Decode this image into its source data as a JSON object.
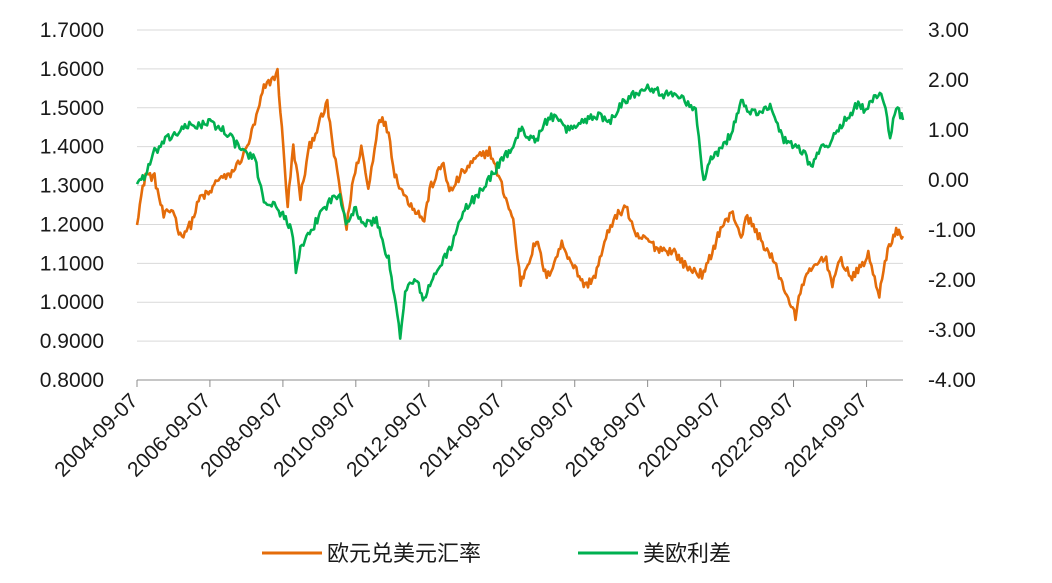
{
  "chart_data": {
    "type": "line",
    "title": "",
    "xlabel": "",
    "ylabel_left": "",
    "ylabel_right": "",
    "grid": "horizontal",
    "legend_position": "bottom",
    "x_range": [
      "2004-09-07",
      "2025-09-07"
    ],
    "x_tick_labels": [
      "2004-09-07",
      "2006-09-07",
      "2008-09-07",
      "2010-09-07",
      "2012-09-07",
      "2014-09-07",
      "2016-09-07",
      "2018-09-07",
      "2020-09-07",
      "2022-09-07",
      "2024-09-07"
    ],
    "y_left": {
      "min": 0.8,
      "max": 1.7,
      "step": 0.1,
      "tick_labels": [
        "0.8000",
        "0.9000",
        "1.0000",
        "1.1000",
        "1.2000",
        "1.3000",
        "1.4000",
        "1.5000",
        "1.6000",
        "1.7000"
      ]
    },
    "y_right": {
      "min": -4.0,
      "max": 3.0,
      "step": 1.0,
      "tick_labels": [
        "-4.00",
        "-3.00",
        "-2.00",
        "-1.00",
        "0.00",
        "1.00",
        "2.00",
        "3.00"
      ]
    },
    "series": [
      {
        "name": "欧元兑美元汇率",
        "axis": "left",
        "color": "#E46C0A",
        "points": [
          [
            "2004-09-07",
            1.21
          ],
          [
            "2004-12-01",
            1.33
          ],
          [
            "2005-03-01",
            1.32
          ],
          [
            "2005-06-01",
            1.22
          ],
          [
            "2005-09-01",
            1.24
          ],
          [
            "2005-11-15",
            1.17
          ],
          [
            "2006-03-01",
            1.2
          ],
          [
            "2006-06-01",
            1.27
          ],
          [
            "2006-09-07",
            1.28
          ],
          [
            "2006-12-01",
            1.32
          ],
          [
            "2007-03-01",
            1.32
          ],
          [
            "2007-06-01",
            1.35
          ],
          [
            "2007-09-01",
            1.39
          ],
          [
            "2007-12-01",
            1.46
          ],
          [
            "2008-03-01",
            1.55
          ],
          [
            "2008-07-15",
            1.59
          ],
          [
            "2008-10-25",
            1.25
          ],
          [
            "2008-12-20",
            1.4
          ],
          [
            "2009-03-01",
            1.27
          ],
          [
            "2009-06-01",
            1.4
          ],
          [
            "2009-11-25",
            1.51
          ],
          [
            "2010-02-01",
            1.38
          ],
          [
            "2010-06-07",
            1.19
          ],
          [
            "2010-08-01",
            1.3
          ],
          [
            "2010-11-01",
            1.4
          ],
          [
            "2011-01-10",
            1.29
          ],
          [
            "2011-05-01",
            1.48
          ],
          [
            "2011-08-01",
            1.44
          ],
          [
            "2011-10-01",
            1.33
          ],
          [
            "2012-01-15",
            1.27
          ],
          [
            "2012-07-24",
            1.21
          ],
          [
            "2012-09-15",
            1.29
          ],
          [
            "2013-02-01",
            1.36
          ],
          [
            "2013-04-01",
            1.28
          ],
          [
            "2013-08-01",
            1.33
          ],
          [
            "2014-01-01",
            1.37
          ],
          [
            "2014-05-08",
            1.39
          ],
          [
            "2014-09-07",
            1.3
          ],
          [
            "2014-12-31",
            1.21
          ],
          [
            "2015-03-15",
            1.05
          ],
          [
            "2015-08-20",
            1.16
          ],
          [
            "2015-12-01",
            1.06
          ],
          [
            "2016-05-01",
            1.15
          ],
          [
            "2016-12-20",
            1.04
          ],
          [
            "2017-04-01",
            1.07
          ],
          [
            "2017-09-01",
            1.2
          ],
          [
            "2018-02-01",
            1.25
          ],
          [
            "2018-05-01",
            1.17
          ],
          [
            "2018-09-07",
            1.16
          ],
          [
            "2018-12-01",
            1.14
          ],
          [
            "2019-06-01",
            1.13
          ],
          [
            "2019-09-30",
            1.09
          ],
          [
            "2020-03-20",
            1.07
          ],
          [
            "2020-06-01",
            1.12
          ],
          [
            "2020-09-07",
            1.19
          ],
          [
            "2021-01-06",
            1.23
          ],
          [
            "2021-03-31",
            1.17
          ],
          [
            "2021-06-01",
            1.22
          ],
          [
            "2021-09-01",
            1.18
          ],
          [
            "2022-03-01",
            1.1
          ],
          [
            "2022-07-01",
            1.02
          ],
          [
            "2022-09-27",
            0.96
          ],
          [
            "2022-12-01",
            1.05
          ],
          [
            "2023-04-01",
            1.09
          ],
          [
            "2023-07-15",
            1.12
          ],
          [
            "2023-10-01",
            1.05
          ],
          [
            "2023-12-28",
            1.11
          ],
          [
            "2024-04-15",
            1.06
          ],
          [
            "2024-09-25",
            1.12
          ],
          [
            "2025-01-13",
            1.02
          ],
          [
            "2025-04-21",
            1.15
          ],
          [
            "2025-07-01",
            1.18
          ],
          [
            "2025-09-07",
            1.17
          ]
        ]
      },
      {
        "name": "美欧利差",
        "axis": "right",
        "color": "#00B050",
        "points": [
          [
            "2004-09-07",
            -0.05
          ],
          [
            "2004-12-01",
            0.1
          ],
          [
            "2005-03-01",
            0.55
          ],
          [
            "2005-06-01",
            0.75
          ],
          [
            "2005-09-01",
            0.9
          ],
          [
            "2006-03-01",
            1.1
          ],
          [
            "2006-06-01",
            1.1
          ],
          [
            "2006-09-07",
            1.15
          ],
          [
            "2006-12-01",
            1.05
          ],
          [
            "2007-03-01",
            0.95
          ],
          [
            "2007-06-01",
            0.7
          ],
          [
            "2007-09-01",
            0.55
          ],
          [
            "2007-12-01",
            0.4
          ],
          [
            "2008-03-01",
            -0.4
          ],
          [
            "2008-06-01",
            -0.5
          ],
          [
            "2008-09-07",
            -0.7
          ],
          [
            "2008-12-01",
            -0.95
          ],
          [
            "2009-01-15",
            -1.8
          ],
          [
            "2009-03-01",
            -1.4
          ],
          [
            "2009-06-01",
            -1.1
          ],
          [
            "2009-10-01",
            -0.6
          ],
          [
            "2010-01-01",
            -0.4
          ],
          [
            "2010-04-01",
            -0.3
          ],
          [
            "2010-06-01",
            -0.8
          ],
          [
            "2010-09-07",
            -0.6
          ],
          [
            "2010-12-01",
            -0.9
          ],
          [
            "2011-04-01",
            -0.8
          ],
          [
            "2011-08-01",
            -1.6
          ],
          [
            "2011-11-25",
            -3.1
          ],
          [
            "2012-01-15",
            -2.2
          ],
          [
            "2012-05-01",
            -2.0
          ],
          [
            "2012-07-24",
            -2.4
          ],
          [
            "2012-11-01",
            -1.9
          ],
          [
            "2013-04-01",
            -1.4
          ],
          [
            "2013-09-01",
            -0.6
          ],
          [
            "2014-01-01",
            -0.3
          ],
          [
            "2014-05-01",
            0.0
          ],
          [
            "2014-09-07",
            0.4
          ],
          [
            "2014-12-01",
            0.6
          ],
          [
            "2015-03-15",
            1.0
          ],
          [
            "2015-08-20",
            0.8
          ],
          [
            "2016-01-01",
            1.3
          ],
          [
            "2016-07-01",
            1.0
          ],
          [
            "2016-12-20",
            1.2
          ],
          [
            "2017-04-01",
            1.3
          ],
          [
            "2017-09-01",
            1.2
          ],
          [
            "2017-12-01",
            1.5
          ],
          [
            "2018-02-01",
            1.6
          ],
          [
            "2018-09-07",
            1.9
          ],
          [
            "2018-12-01",
            1.8
          ],
          [
            "2019-03-01",
            1.7
          ],
          [
            "2019-08-15",
            1.7
          ],
          [
            "2019-12-01",
            1.4
          ],
          [
            "2020-01-01",
            1.4
          ],
          [
            "2020-03-20",
            0.0
          ],
          [
            "2020-06-01",
            0.4
          ],
          [
            "2020-09-07",
            0.6
          ],
          [
            "2021-01-06",
            1.0
          ],
          [
            "2021-03-31",
            1.6
          ],
          [
            "2021-06-01",
            1.4
          ],
          [
            "2021-09-01",
            1.3
          ],
          [
            "2022-01-01",
            1.5
          ],
          [
            "2022-03-01",
            1.3
          ],
          [
            "2022-06-01",
            0.8
          ],
          [
            "2022-09-27",
            0.7
          ],
          [
            "2022-12-01",
            0.6
          ],
          [
            "2023-03-01",
            0.3
          ],
          [
            "2023-06-01",
            0.6
          ],
          [
            "2023-10-01",
            0.8
          ],
          [
            "2024-02-01",
            1.2
          ],
          [
            "2024-06-01",
            1.5
          ],
          [
            "2024-09-07",
            1.4
          ],
          [
            "2024-12-20",
            1.7
          ],
          [
            "2025-03-01",
            1.6
          ],
          [
            "2025-05-01",
            0.8
          ],
          [
            "2025-07-01",
            1.5
          ],
          [
            "2025-09-07",
            1.2
          ]
        ]
      }
    ]
  }
}
